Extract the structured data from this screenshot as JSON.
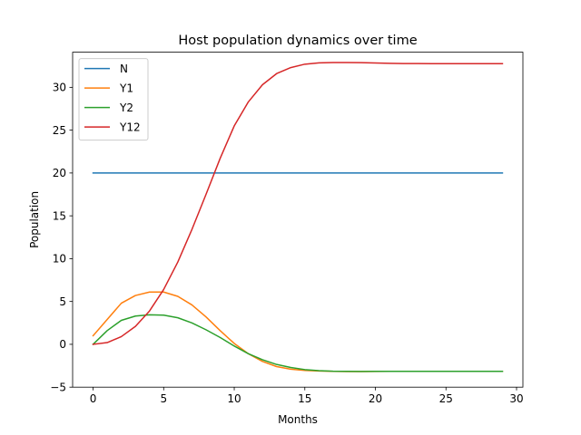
{
  "chart_data": {
    "type": "line",
    "title": "Host population dynamics over time",
    "xlabel": "Months",
    "ylabel": "Population",
    "xlim": [
      -1.45,
      30.45
    ],
    "ylim": [
      -5,
      34.1
    ],
    "xticks": [
      0,
      5,
      10,
      15,
      20,
      25,
      30
    ],
    "yticks": [
      -5,
      0,
      5,
      10,
      15,
      20,
      25,
      30
    ],
    "grid": false,
    "legend_position": "upper left",
    "x": [
      0,
      1,
      2,
      3,
      4,
      5,
      6,
      7,
      8,
      9,
      10,
      11,
      12,
      13,
      14,
      15,
      16,
      17,
      18,
      19,
      20,
      21,
      22,
      23,
      24,
      25,
      26,
      27,
      28,
      29
    ],
    "series": [
      {
        "name": "N",
        "color": "#1f77b4",
        "values": [
          20,
          20,
          20,
          20,
          20,
          20,
          20,
          20,
          20,
          20,
          20,
          20,
          20,
          20,
          20,
          20,
          20,
          20,
          20,
          20,
          20,
          20,
          20,
          20,
          20,
          20,
          20,
          20,
          20,
          20
        ]
      },
      {
        "name": "Y1",
        "color": "#ff7f0e",
        "values": [
          1.0,
          2.9,
          4.8,
          5.7,
          6.1,
          6.1,
          5.6,
          4.6,
          3.2,
          1.6,
          0.1,
          -1.1,
          -2.0,
          -2.6,
          -2.9,
          -3.05,
          -3.12,
          -3.16,
          -3.18,
          -3.18,
          -3.17,
          -3.16,
          -3.16,
          -3.15,
          -3.15,
          -3.15,
          -3.15,
          -3.15,
          -3.15,
          -3.15
        ]
      },
      {
        "name": "Y2",
        "color": "#2ca02c",
        "values": [
          0.0,
          1.6,
          2.8,
          3.3,
          3.45,
          3.4,
          3.1,
          2.5,
          1.7,
          0.8,
          -0.2,
          -1.1,
          -1.8,
          -2.35,
          -2.7,
          -2.95,
          -3.08,
          -3.14,
          -3.16,
          -3.17,
          -3.16,
          -3.16,
          -3.15,
          -3.15,
          -3.15,
          -3.15,
          -3.15,
          -3.15,
          -3.15,
          -3.15
        ]
      },
      {
        "name": "Y12",
        "color": "#d62728",
        "values": [
          0.0,
          0.2,
          0.9,
          2.1,
          3.9,
          6.4,
          9.6,
          13.4,
          17.5,
          21.7,
          25.5,
          28.3,
          30.3,
          31.6,
          32.3,
          32.7,
          32.85,
          32.9,
          32.9,
          32.88,
          32.84,
          32.8,
          32.78,
          32.77,
          32.76,
          32.76,
          32.76,
          32.76,
          32.76,
          32.76
        ]
      }
    ]
  }
}
